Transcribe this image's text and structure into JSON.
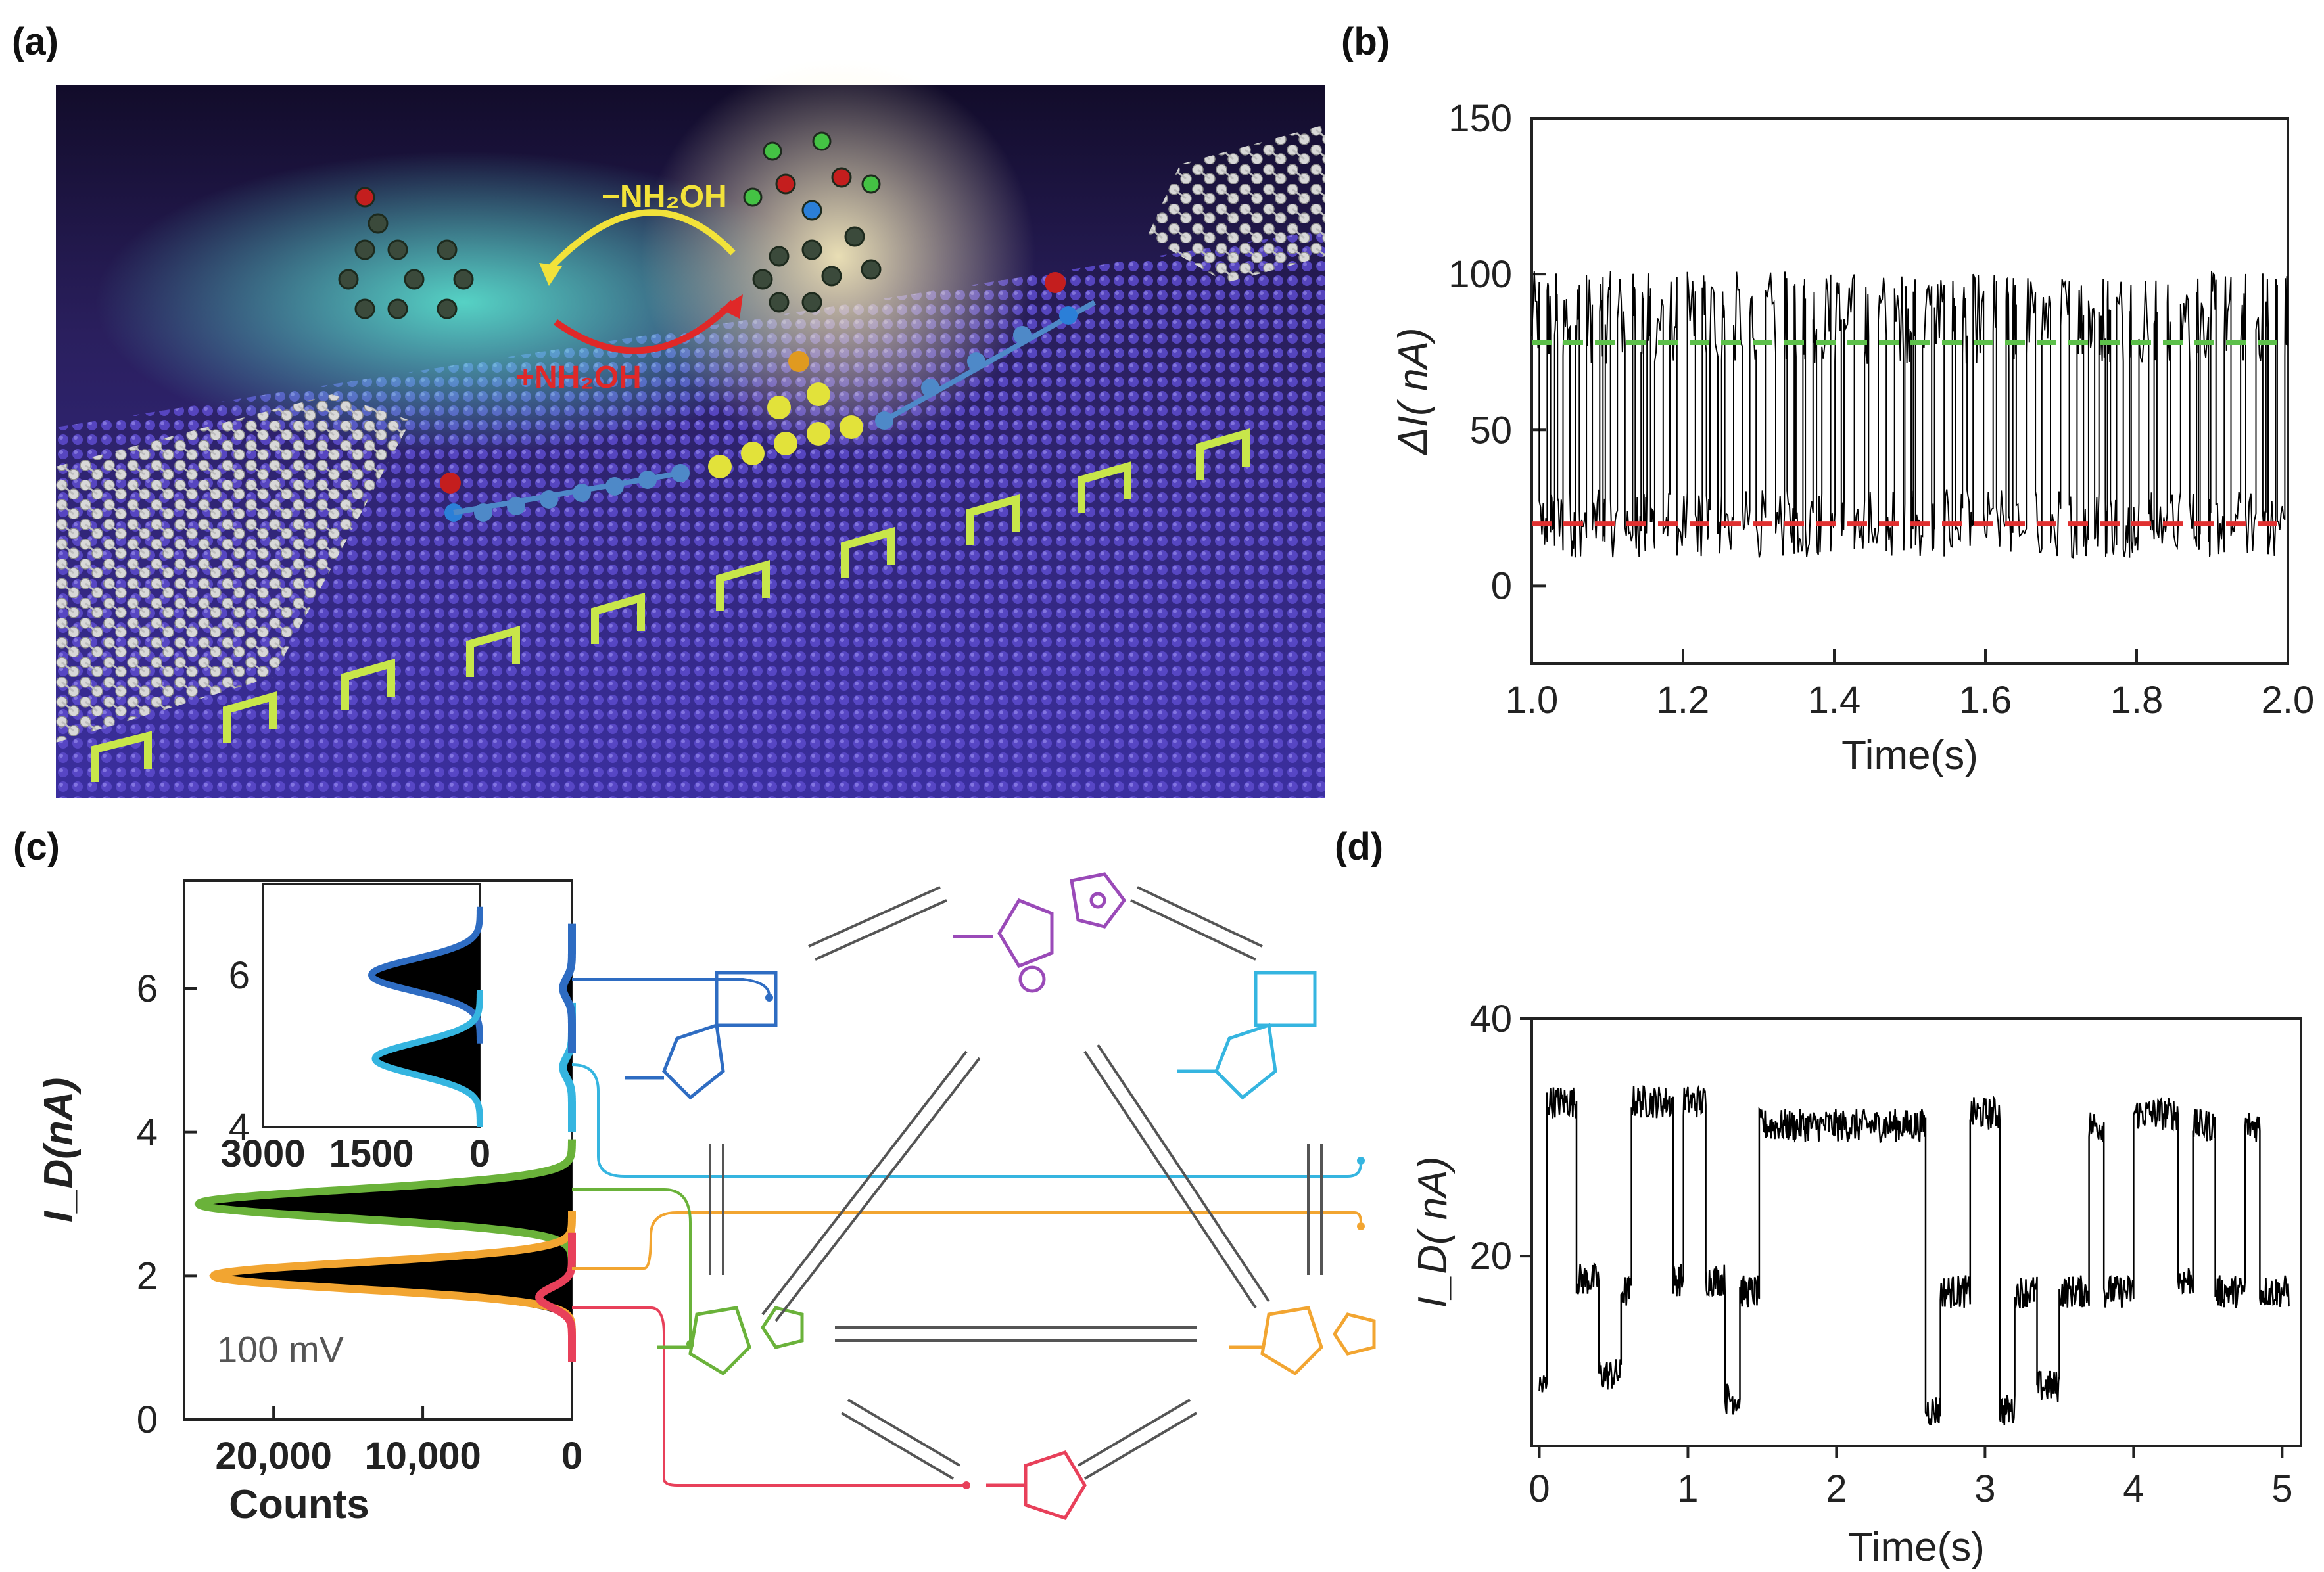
{
  "labels": {
    "a": "(a)",
    "b": "(b)",
    "c": "(c)",
    "d": "(d)"
  },
  "panel_a": {
    "minus_label": "−NH₂OH",
    "plus_label": "+NH₂OH"
  },
  "chart_data": [
    {
      "id": "b",
      "type": "line",
      "xlabel": "Time(s)",
      "ylabel": "ΔI( nA)",
      "xlim": [
        1.0,
        2.0
      ],
      "ylim": [
        -25,
        150
      ],
      "xticks": [
        "1.0",
        "1.2",
        "1.4",
        "1.6",
        "1.8",
        "2.0"
      ],
      "yticks": [
        "0",
        "50",
        "100",
        "150"
      ],
      "levels": [
        {
          "value": 78,
          "color": "#5cc04a",
          "style": "dashed"
        },
        {
          "value": 20,
          "color": "#e03030",
          "style": "dashed"
        }
      ],
      "description_levels": {
        "low": 20,
        "high": 78,
        "peak_max": 100,
        "trough_min": -5
      },
      "switching_events_per_second": 90
    },
    {
      "id": "c",
      "type": "histogram",
      "xlabel": "Counts",
      "ylabel": "I_D(nA)",
      "xlim": [
        26000,
        0
      ],
      "ylim": [
        0,
        7.5
      ],
      "xticks": [
        "20,000",
        "10,000",
        "0"
      ],
      "yticks": [
        "0",
        "2",
        "4",
        "6"
      ],
      "annotation": "100 mV",
      "peaks": [
        {
          "center": 3.0,
          "counts": 25000,
          "color": "#6ab23a"
        },
        {
          "center": 2.0,
          "counts": 24000,
          "color": "#f2a531"
        },
        {
          "center": 1.7,
          "counts": 2200,
          "color": "#e8405a"
        },
        {
          "center": 4.9,
          "counts": 600,
          "color": "#35b5e0"
        },
        {
          "center": 6.0,
          "counts": 600,
          "color": "#2e6cc2"
        }
      ],
      "inset": {
        "xlim": [
          3000,
          0
        ],
        "ylim": [
          4,
          7.2
        ],
        "xticks": [
          "3000",
          "1500",
          "0"
        ],
        "yticks": [
          "4",
          "6"
        ],
        "peaks": [
          {
            "center": 6.0,
            "counts": 1500,
            "color": "#2e6cc2"
          },
          {
            "center": 4.9,
            "counts": 1450,
            "color": "#35b5e0"
          }
        ]
      }
    },
    {
      "id": "d",
      "type": "line",
      "xlabel": "Time(s)",
      "ylabel": "I_D( nA)",
      "xlim": [
        0,
        5.1
      ],
      "ylim": [
        4,
        40
      ],
      "xticks": [
        "0",
        "1",
        "2",
        "3",
        "4",
        "5"
      ],
      "yticks": [
        "20",
        "40"
      ],
      "levels_nA": [
        8,
        17,
        32
      ],
      "segments": [
        [
          0,
          0.05,
          9
        ],
        [
          0.05,
          0.25,
          33
        ],
        [
          0.25,
          0.4,
          18
        ],
        [
          0.4,
          0.55,
          10
        ],
        [
          0.55,
          0.62,
          17
        ],
        [
          0.62,
          0.9,
          33
        ],
        [
          0.9,
          0.97,
          18
        ],
        [
          0.97,
          1.12,
          33
        ],
        [
          1.12,
          1.25,
          18
        ],
        [
          1.25,
          1.35,
          8
        ],
        [
          1.35,
          1.48,
          17
        ],
        [
          1.48,
          2.6,
          31
        ],
        [
          2.6,
          2.7,
          7
        ],
        [
          2.7,
          2.9,
          17
        ],
        [
          2.9,
          3.1,
          32
        ],
        [
          3.1,
          3.2,
          7
        ],
        [
          3.2,
          3.35,
          17
        ],
        [
          3.35,
          3.5,
          9
        ],
        [
          3.5,
          3.7,
          17
        ],
        [
          3.7,
          3.8,
          31
        ],
        [
          3.8,
          4.0,
          17
        ],
        [
          4.0,
          4.3,
          32
        ],
        [
          4.3,
          4.4,
          18
        ],
        [
          4.4,
          4.55,
          31
        ],
        [
          4.55,
          4.75,
          17
        ],
        [
          4.75,
          4.85,
          31
        ],
        [
          4.85,
          5.05,
          17
        ]
      ]
    }
  ]
}
